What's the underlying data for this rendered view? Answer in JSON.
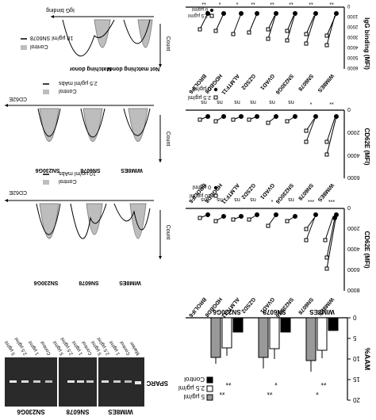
{
  "figure": {
    "orientation": "rotated-180",
    "style": "monochrome scientific figure",
    "colors": {
      "ink": "#000000",
      "fill_gray": "#bdbdbd",
      "gel_dark": "#2a2a2a",
      "gel_band": "#e8e8e8"
    }
  },
  "panel_a": {
    "ylabel": "%AAM",
    "y_ticks": [
      "0",
      "5",
      "10",
      "15",
      "20"
    ],
    "group_labels": [
      "WIM8ES",
      "SN6078",
      "SN230G6"
    ],
    "legend": [
      "5 µg/ml",
      "2.5 µg/ml",
      "Control"
    ],
    "significance": [
      "**",
      "*",
      "*",
      "**",
      "**",
      "**"
    ]
  },
  "panel_b_gel": {
    "label": "SPARC",
    "group_labels": [
      "WIM8ES",
      "SN6078",
      "SN230G6"
    ],
    "lanes": [
      "Marker",
      "Control",
      "1 µg/ml",
      "2.5 µg/ml",
      "5 µg/ml",
      "Control",
      "1 µg/ml",
      "2.5 µg/ml",
      "5 µg/ml",
      "Control",
      "1 µg/ml",
      "2.5 µg/ml",
      "5 µg/ml"
    ]
  },
  "panel_c": {
    "ylabel": "CD62E (MFI)",
    "y_ticks": [
      "0",
      "2000",
      "4000",
      "6000",
      "8000"
    ],
    "cell_lines": [
      "WIM8ES",
      "SN6078",
      "SN230G6",
      "GVAD1",
      "GZSD2",
      "ALMTF11",
      "HDGBD8",
      "BROLIF6"
    ],
    "significance": [
      "***",
      "***",
      "ns",
      "*",
      "ns",
      "ns",
      "ns",
      "ns"
    ],
    "legend": [
      "10 µg/ml",
      "0 µg/ml"
    ]
  },
  "panel_d": {
    "ylabel": "CD62E (MFI)",
    "y_ticks": [
      "0",
      "2000",
      "4000",
      "6000"
    ],
    "cell_lines": [
      "WIM8ES",
      "SN6078",
      "SN230G6",
      "GVAD1",
      "GZSD2",
      "ALMTF11",
      "HDGBD8",
      "BROLIF6"
    ],
    "significance": [
      "**",
      "*",
      "ns",
      "ns",
      "ns",
      "ns",
      "ns",
      "ns"
    ],
    "legend": [
      "2.5 µg/ml",
      "0 µg/ml"
    ]
  },
  "panel_e": {
    "ylabel": "IgG binding (MFI)",
    "y_ticks": [
      "0",
      "1000",
      "2000",
      "3000",
      "4000",
      "5000",
      "6000"
    ],
    "cell_lines": [
      "WIM8ES",
      "SN6078",
      "SN230G6",
      "GVAD1",
      "GZSD2",
      "ALMTF11",
      "HDGBD8",
      "BROLIF6"
    ],
    "significance": [
      "**",
      "**",
      "**",
      "**",
      "**",
      "*",
      "*",
      "**"
    ],
    "legend": [
      "2.5 µg/ml",
      "0 µg/ml"
    ]
  },
  "hist_row1": {
    "axis_label": "CD62E",
    "count_label": "Count",
    "legend": [
      "10 µg/ml mAbs",
      "Control"
    ],
    "sample_labels": [
      "WIM8ES",
      "SN6078",
      "SN230G6"
    ]
  },
  "hist_row2": {
    "axis_label": "CD62E",
    "count_label": "Count",
    "legend": [
      "2.5 µg/ml mAbs",
      "Control"
    ],
    "sample_labels": [
      "WIM8ES",
      "SN6078",
      "SN230G6"
    ]
  },
  "hist_row3": {
    "axis_label": "IgG binding",
    "count_label": "Count",
    "legend": [
      "10 µg/ml SN6078",
      "Control"
    ],
    "sample_labels": [
      "Not matching donor",
      "Matching donor"
    ]
  }
}
